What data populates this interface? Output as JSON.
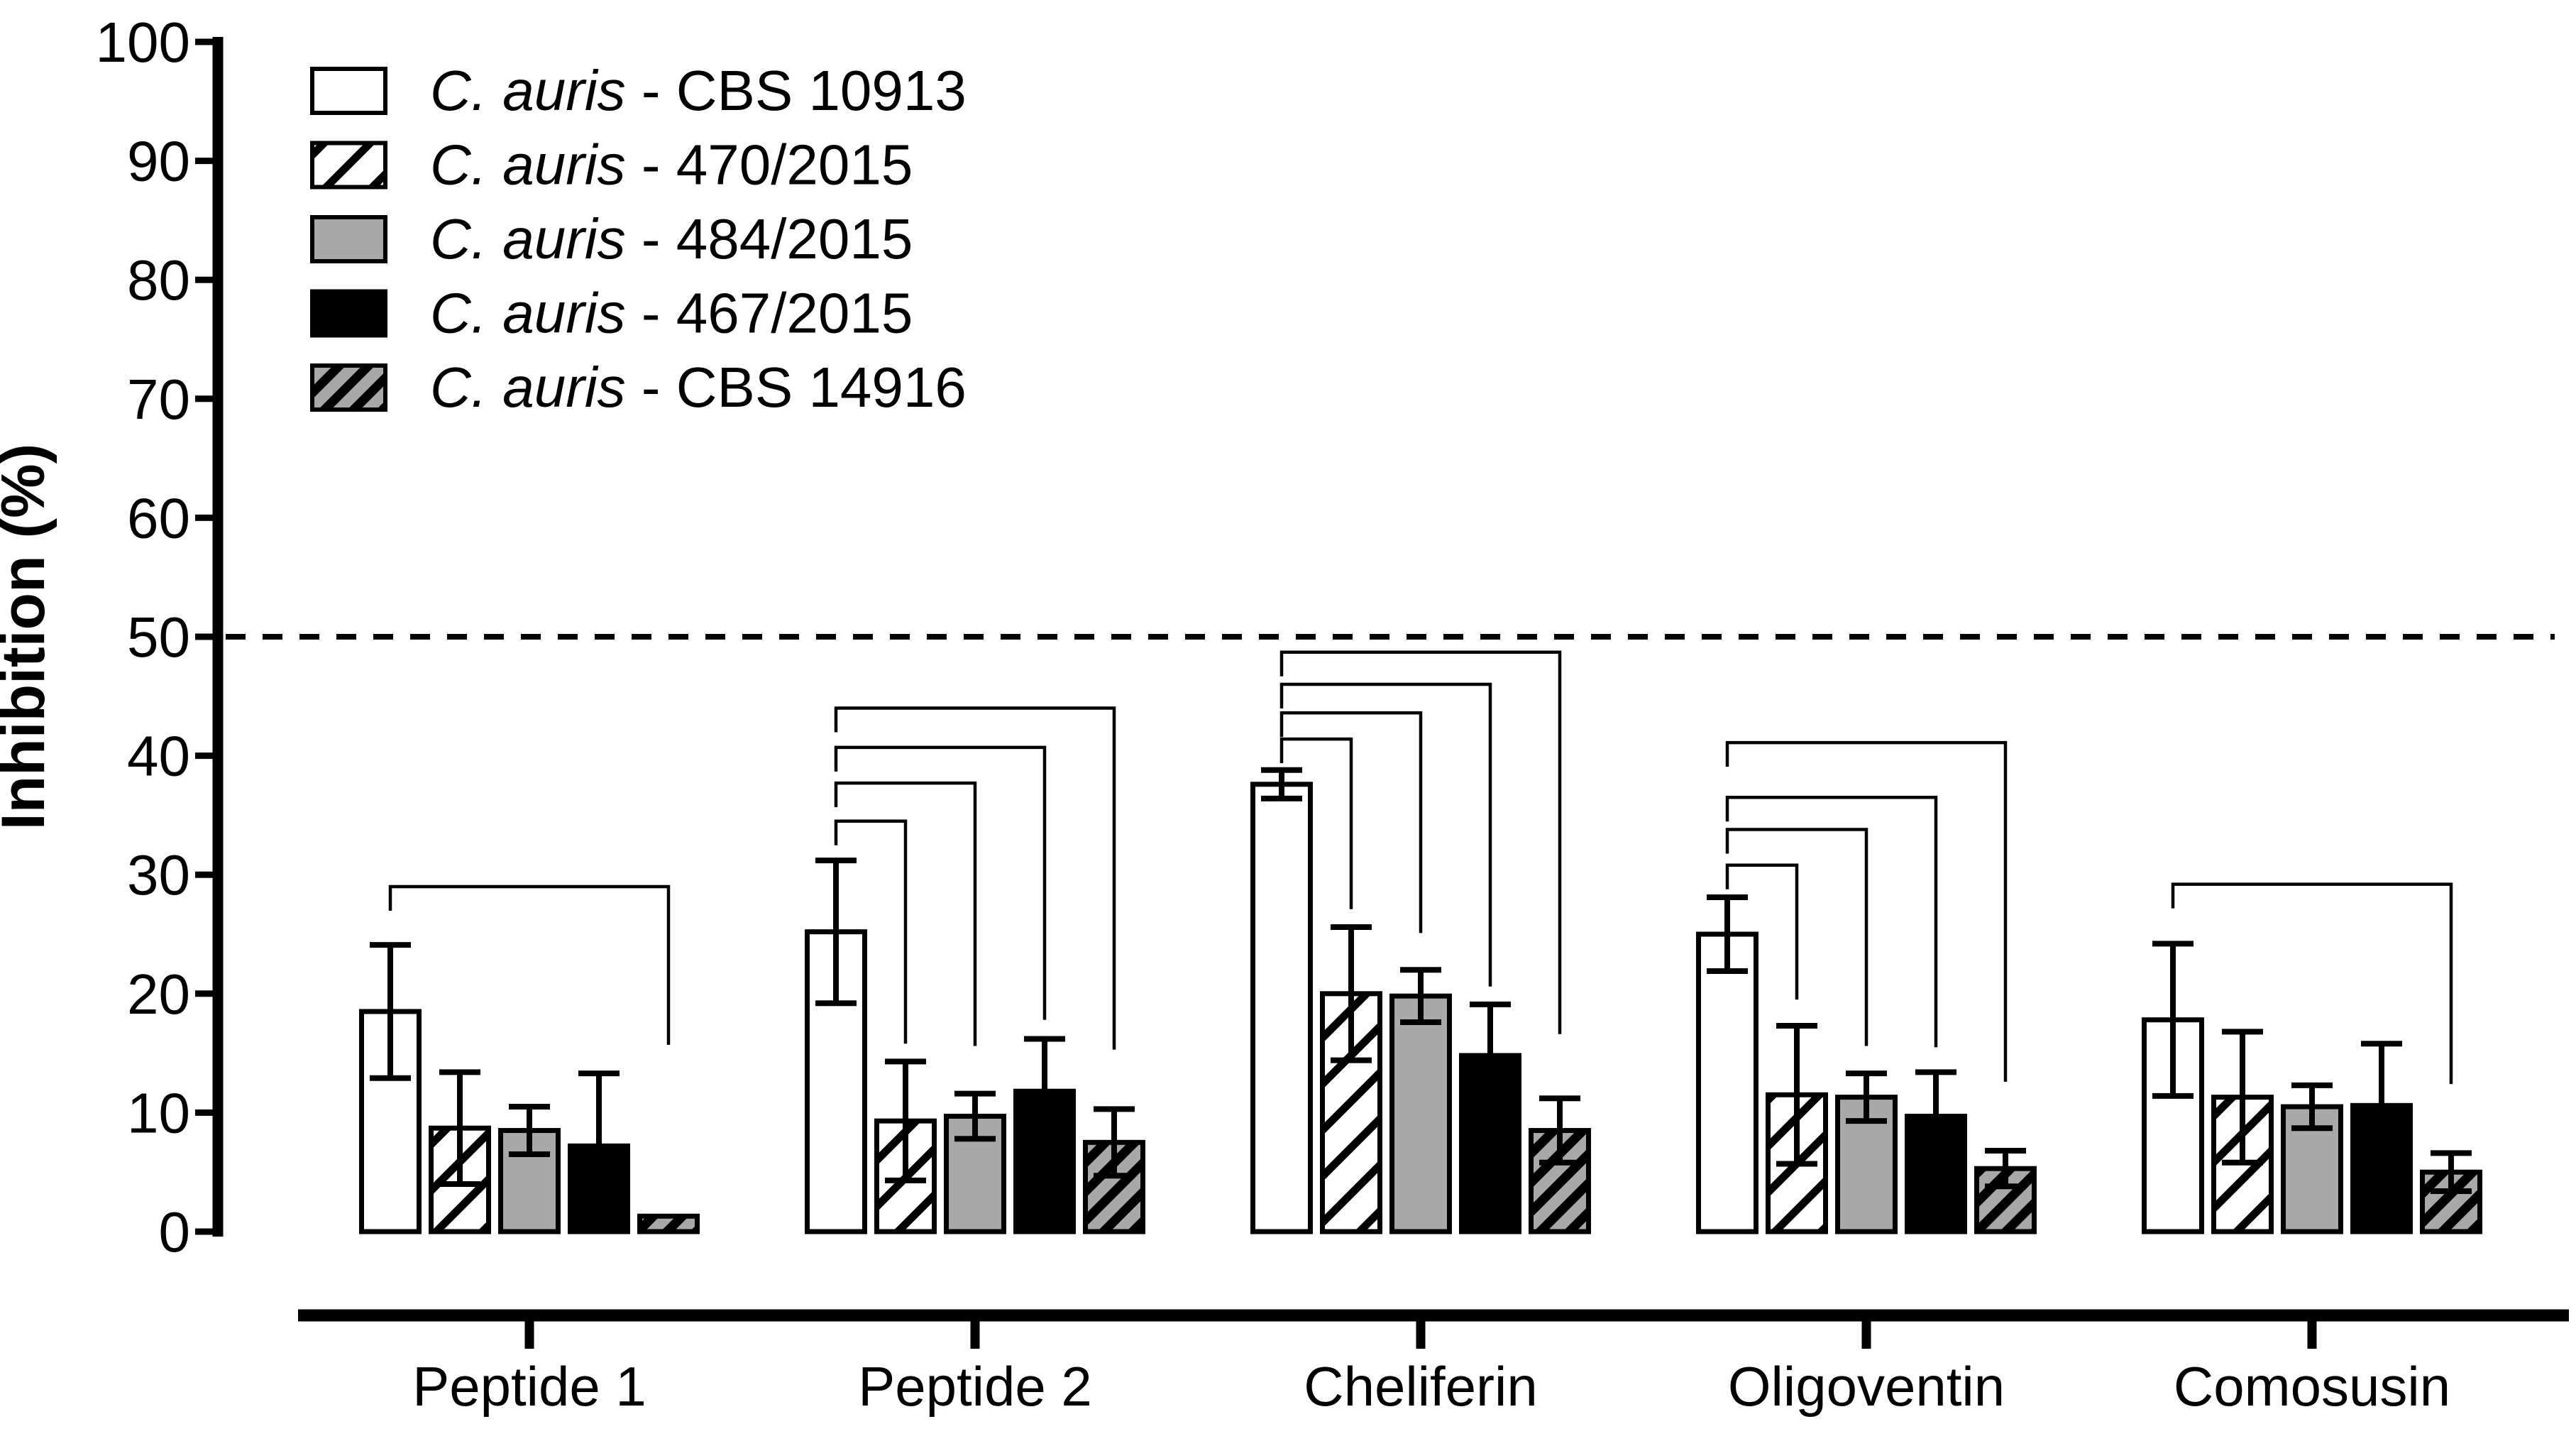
{
  "figure": {
    "background": "#FFFFFF"
  },
  "chart_data": {
    "type": "bar",
    "title": "",
    "xlabel": "",
    "ylabel": "Inhibition (%)",
    "ylim": [
      0,
      100
    ],
    "yticks": [
      0,
      10,
      20,
      30,
      40,
      50,
      60,
      70,
      80,
      90,
      100
    ],
    "grid": false,
    "legend_position": "top-left",
    "reference_line": {
      "value": 50,
      "style": "dashed"
    },
    "colors": {
      "white": "#FFFFFF",
      "gray": "#A8A8A8",
      "black": "#000000"
    },
    "categories": [
      "Peptide 1",
      "Peptide 2",
      "Cheliferin",
      "Oligoventin",
      "Comosusin"
    ],
    "series": [
      {
        "label_italic": "C. auris",
        "label_rest": " - CBS 10913",
        "fill": "white",
        "values": [
          18.5,
          25.2,
          37.6,
          25.0,
          17.8
        ],
        "errors": [
          5.6,
          6.0,
          1.2,
          3.1,
          6.4
        ]
      },
      {
        "label_italic": "C. auris",
        "label_rest": " - 470/2015",
        "fill": "hatch-white",
        "values": [
          8.7,
          9.3,
          20.0,
          11.5,
          11.3
        ],
        "errors": [
          4.7,
          5.0,
          5.6,
          5.8,
          5.5
        ]
      },
      {
        "label_italic": "C. auris",
        "label_rest": " - 484/2015",
        "fill": "gray",
        "values": [
          8.5,
          9.7,
          19.8,
          11.3,
          10.5
        ],
        "errors": [
          2.0,
          1.9,
          2.2,
          2.0,
          1.8
        ]
      },
      {
        "label_italic": "C. auris",
        "label_rest": " - 467/2015",
        "fill": "black",
        "values": [
          7.2,
          11.8,
          14.8,
          9.7,
          10.6
        ],
        "errors": [
          6.1,
          4.4,
          4.3,
          3.7,
          5.2
        ]
      },
      {
        "label_italic": "C. auris",
        "label_rest": " - CBS 14916",
        "fill": "hatch-gray",
        "values": [
          1.3,
          7.5,
          8.5,
          5.3,
          5.0
        ],
        "errors": [
          0,
          2.8,
          2.7,
          1.5,
          1.6
        ]
      }
    ],
    "significance_brackets": [
      {
        "category_index": 0,
        "from_series": 0,
        "to_series": 4,
        "height_pct": 29.0,
        "drop_to_pct": 15.7
      },
      {
        "category_index": 1,
        "from_series": 0,
        "to_series": 1,
        "height_pct": 34.5,
        "drop_to_pct": 15.8
      },
      {
        "category_index": 1,
        "from_series": 0,
        "to_series": 2,
        "height_pct": 37.7,
        "drop_to_pct": 15.6
      },
      {
        "category_index": 1,
        "from_series": 0,
        "to_series": 3,
        "height_pct": 40.7,
        "drop_to_pct": 17.8
      },
      {
        "category_index": 1,
        "from_series": 0,
        "to_series": 4,
        "height_pct": 44.0,
        "drop_to_pct": 15.3
      },
      {
        "category_index": 2,
        "from_series": 0,
        "to_series": 1,
        "height_pct": 41.4,
        "drop_to_pct": 27.1
      },
      {
        "category_index": 2,
        "from_series": 0,
        "to_series": 2,
        "height_pct": 43.6,
        "drop_to_pct": 25.1
      },
      {
        "category_index": 2,
        "from_series": 0,
        "to_series": 3,
        "height_pct": 46.0,
        "drop_to_pct": 20.6
      },
      {
        "category_index": 2,
        "from_series": 0,
        "to_series": 4,
        "height_pct": 48.7,
        "drop_to_pct": 16.6
      },
      {
        "category_index": 3,
        "from_series": 0,
        "to_series": 1,
        "height_pct": 30.8,
        "drop_to_pct": 19.5
      },
      {
        "category_index": 3,
        "from_series": 0,
        "to_series": 2,
        "height_pct": 33.8,
        "drop_to_pct": 15.6
      },
      {
        "category_index": 3,
        "from_series": 0,
        "to_series": 3,
        "height_pct": 36.5,
        "drop_to_pct": 15.5
      },
      {
        "category_index": 3,
        "from_series": 0,
        "to_series": 4,
        "height_pct": 41.1,
        "drop_to_pct": 12.6
      },
      {
        "category_index": 4,
        "from_series": 0,
        "to_series": 4,
        "height_pct": 29.2,
        "drop_to_pct": 12.4
      }
    ]
  }
}
